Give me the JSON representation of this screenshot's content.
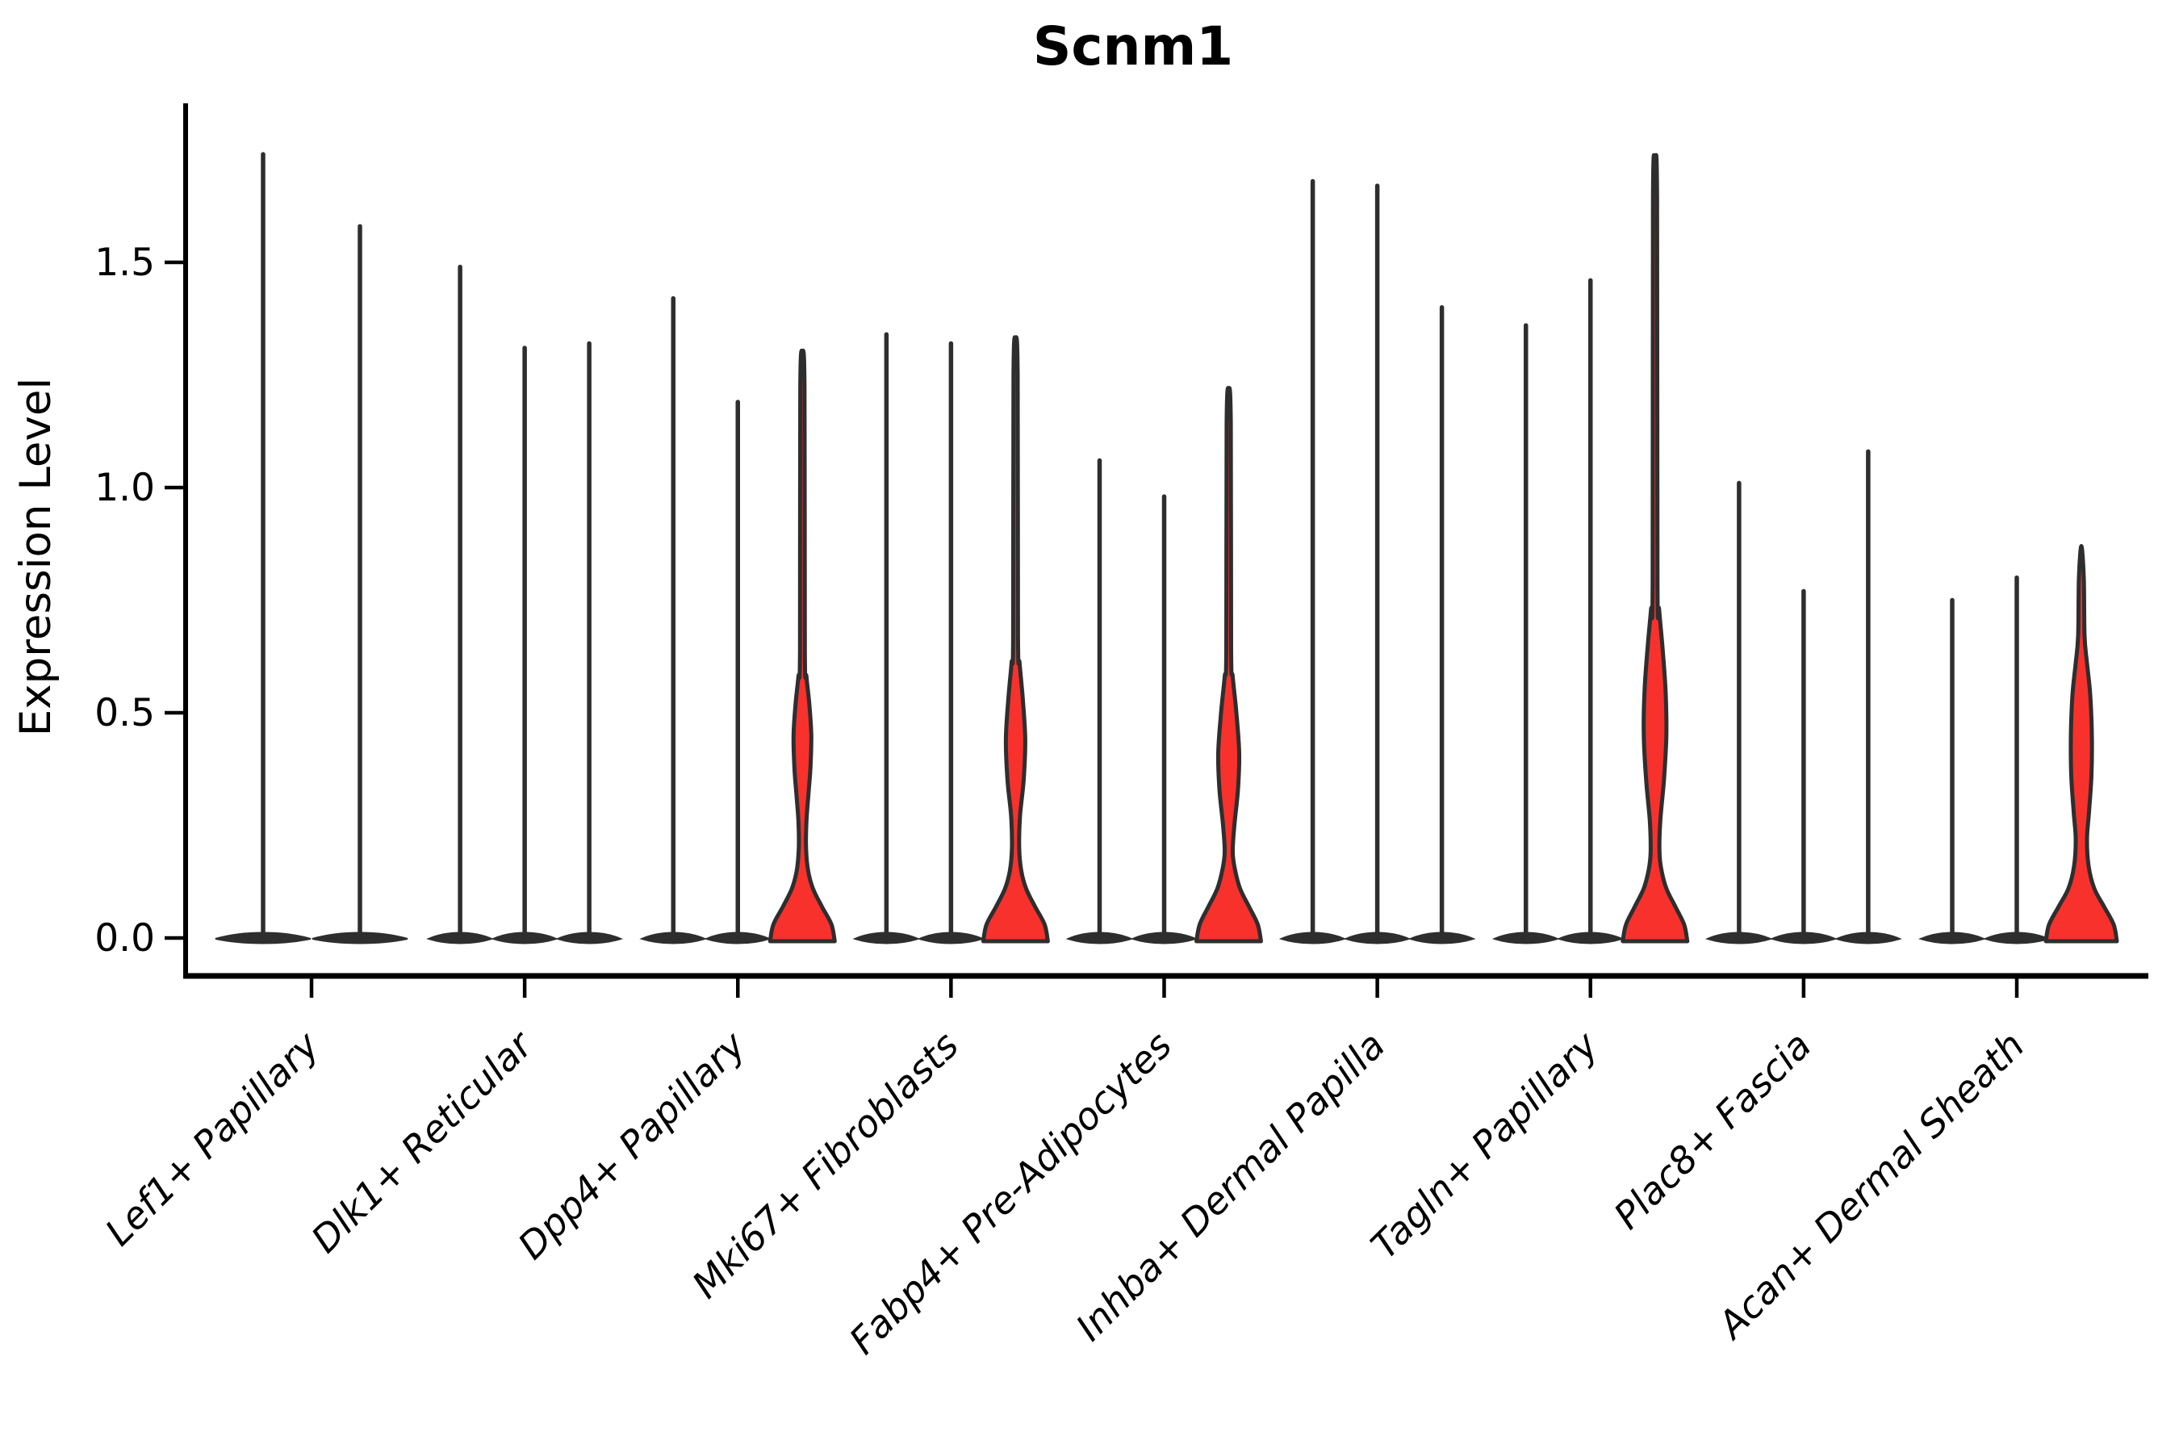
{
  "title": "Scnm1",
  "y_axis": {
    "label": "Expression Level"
  },
  "chart_data": {
    "type": "violin",
    "title": "Scnm1",
    "xlabel": "",
    "ylabel": "Expression Level",
    "yticks": [
      0.0,
      0.5,
      1.0,
      1.5
    ],
    "ytick_labels": [
      "0.0",
      "0.5",
      "1.0",
      "1.5"
    ],
    "ylim": [
      -0.08,
      1.85
    ],
    "grid": false,
    "legend": "none",
    "colors": {
      "highlight_fill": "#F8312D",
      "outline": "#2E2E2E",
      "text": "#000000"
    },
    "categories": [
      "Lef1+ Papillary",
      "Dlk1+ Reticular",
      "Dpp4+ Papillary",
      "Mki67+ Fibroblasts",
      "Fabp4+ Pre-Adipocytes",
      "Inhba+ Dermal Papilla",
      "Tagln+ Papillary",
      "Plac8+ Fascia",
      "Acan+ Dermal Sheath"
    ],
    "groups": [
      {
        "category": "Lef1+ Papillary",
        "violins": [
          {
            "max_expression": 1.74,
            "highlighted": false
          },
          {
            "max_expression": 1.58,
            "highlighted": false
          }
        ]
      },
      {
        "category": "Dlk1+ Reticular",
        "violins": [
          {
            "max_expression": 1.49,
            "highlighted": false
          },
          {
            "max_expression": 1.31,
            "highlighted": false
          },
          {
            "max_expression": 1.32,
            "highlighted": false
          }
        ]
      },
      {
        "category": "Dpp4+ Papillary",
        "violins": [
          {
            "max_expression": 1.42,
            "highlighted": false
          },
          {
            "max_expression": 1.19,
            "highlighted": false
          },
          {
            "max_expression": 1.3,
            "highlighted": true,
            "profile": [
              [
                0,
                40
              ],
              [
                0.03,
                36
              ],
              [
                0.07,
                24
              ],
              [
                0.11,
                13
              ],
              [
                0.15,
                7
              ],
              [
                0.2,
                4.5
              ],
              [
                0.26,
                5
              ],
              [
                0.32,
                7.5
              ],
              [
                0.38,
                10
              ],
              [
                0.45,
                11
              ],
              [
                0.52,
                8.5
              ],
              [
                0.58,
                5
              ],
              [
                0.64,
                3
              ],
              [
                1.22,
                2.6
              ],
              [
                1.3,
                0
              ]
            ]
          }
        ]
      },
      {
        "category": "Mki67+ Fibroblasts",
        "violins": [
          {
            "max_expression": 1.34,
            "highlighted": false
          },
          {
            "max_expression": 1.32,
            "highlighted": false
          },
          {
            "max_expression": 1.33,
            "highlighted": true,
            "profile": [
              [
                0,
                40
              ],
              [
                0.03,
                36
              ],
              [
                0.07,
                24
              ],
              [
                0.11,
                13
              ],
              [
                0.15,
                7
              ],
              [
                0.2,
                4.5
              ],
              [
                0.27,
                5.5
              ],
              [
                0.35,
                10
              ],
              [
                0.44,
                12
              ],
              [
                0.53,
                9
              ],
              [
                0.61,
                5
              ],
              [
                0.67,
                3
              ],
              [
                1.25,
                2.6
              ],
              [
                1.33,
                0
              ]
            ]
          }
        ]
      },
      {
        "category": "Fabp4+ Pre-Adipocytes",
        "violins": [
          {
            "max_expression": 1.06,
            "highlighted": false
          },
          {
            "max_expression": 0.98,
            "highlighted": false
          },
          {
            "max_expression": 1.22,
            "highlighted": true,
            "profile": [
              [
                0,
                40
              ],
              [
                0.03,
                36
              ],
              [
                0.07,
                25
              ],
              [
                0.11,
                14
              ],
              [
                0.15,
                8
              ],
              [
                0.19,
                5
              ],
              [
                0.25,
                7
              ],
              [
                0.33,
                11.5
              ],
              [
                0.41,
                13
              ],
              [
                0.5,
                9.5
              ],
              [
                0.58,
                5
              ],
              [
                0.64,
                3
              ],
              [
                1.14,
                2.6
              ],
              [
                1.22,
                0
              ]
            ]
          }
        ]
      },
      {
        "category": "Inhba+ Dermal Papilla",
        "violins": [
          {
            "max_expression": 1.68,
            "highlighted": false
          },
          {
            "max_expression": 1.67,
            "highlighted": false
          },
          {
            "max_expression": 1.4,
            "highlighted": false
          }
        ]
      },
      {
        "category": "Tagln+ Papillary",
        "violins": [
          {
            "max_expression": 1.36,
            "highlighted": false
          },
          {
            "max_expression": 1.46,
            "highlighted": false
          },
          {
            "max_expression": 1.72,
            "highlighted": true,
            "profile": [
              [
                0,
                40
              ],
              [
                0.03,
                36
              ],
              [
                0.07,
                25
              ],
              [
                0.11,
                14
              ],
              [
                0.15,
                8
              ],
              [
                0.19,
                5.5
              ],
              [
                0.26,
                6.5
              ],
              [
                0.35,
                11
              ],
              [
                0.45,
                14
              ],
              [
                0.55,
                13
              ],
              [
                0.65,
                9
              ],
              [
                0.73,
                5
              ],
              [
                0.79,
                3
              ],
              [
                1.64,
                2.6
              ],
              [
                1.72,
                0
              ]
            ]
          }
        ]
      },
      {
        "category": "Plac8+ Fascia",
        "violins": [
          {
            "max_expression": 1.01,
            "highlighted": false
          },
          {
            "max_expression": 0.77,
            "highlighted": false
          },
          {
            "max_expression": 1.08,
            "highlighted": false
          }
        ]
      },
      {
        "category": "Acan+ Dermal Sheath",
        "violins": [
          {
            "max_expression": 0.75,
            "highlighted": false
          },
          {
            "max_expression": 0.8,
            "highlighted": false
          },
          {
            "max_expression": 0.87,
            "highlighted": true,
            "profile": [
              [
                0,
                44
              ],
              [
                0.03,
                40
              ],
              [
                0.07,
                28
              ],
              [
                0.11,
                16
              ],
              [
                0.16,
                9
              ],
              [
                0.22,
                7
              ],
              [
                0.28,
                9.5
              ],
              [
                0.36,
                12.5
              ],
              [
                0.45,
                13
              ],
              [
                0.54,
                11
              ],
              [
                0.61,
                7
              ],
              [
                0.67,
                4
              ],
              [
                0.8,
                3
              ],
              [
                0.87,
                0
              ]
            ]
          }
        ]
      }
    ]
  }
}
